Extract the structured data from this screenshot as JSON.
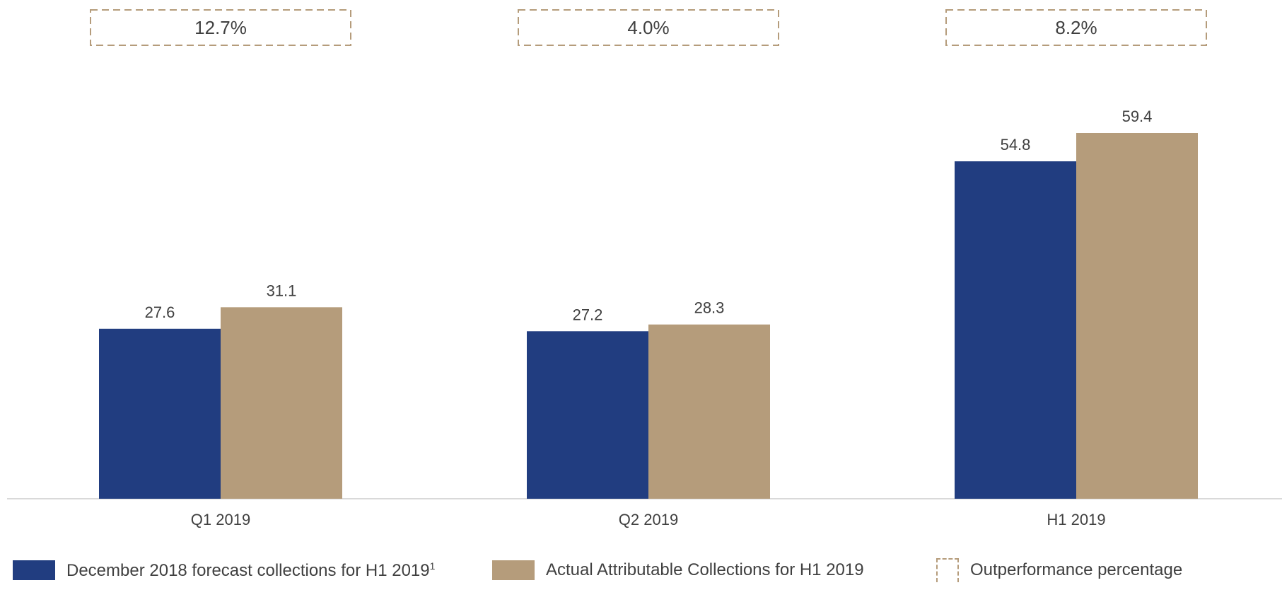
{
  "colors": {
    "forecast": "#213d80",
    "actual": "#b59c7b",
    "outperformance_border": "#b59c7b",
    "axis": "#d9d9d9",
    "text": "#404040"
  },
  "chart_data": {
    "type": "bar",
    "categories": [
      "Q1 2019",
      "Q2 2019",
      "H1 2019"
    ],
    "series": [
      {
        "name": "December 2018 forecast collections for H1 2019",
        "values": [
          27.6,
          27.2,
          54.8
        ]
      },
      {
        "name": "Actual Attributable Collections for H1 2019",
        "values": [
          31.1,
          28.3,
          59.4
        ]
      }
    ],
    "value_labels": [
      [
        "27.6",
        "27.2",
        "54.8"
      ],
      [
        "31.1",
        "28.3",
        "59.4"
      ]
    ],
    "outperformance": [
      "12.7%",
      "4.0%",
      "8.2%"
    ],
    "ylim": [
      0,
      59.4
    ],
    "grid": false,
    "legend_position": "bottom"
  },
  "legend": {
    "forecast_label": "December 2018 forecast collections for H1 2019",
    "forecast_sup": "1",
    "actual_label": "Actual Attributable Collections for H1 2019",
    "outperformance_label": "Outperformance percentage"
  }
}
